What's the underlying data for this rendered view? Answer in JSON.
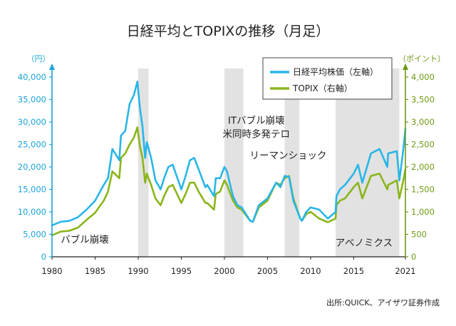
{
  "chart_data": {
    "type": "line",
    "title": "日経平均とTOPIXの推移（月足）",
    "source": "出所:QUICK、アイザワ証券作成",
    "colors": {
      "nikkei": "#29b6e8",
      "topix": "#8ab51a",
      "shade": "#e2e2e2",
      "left_axis": "#1aa3d9",
      "right_axis": "#6e9a14"
    },
    "xlim": [
      1980,
      2021
    ],
    "x_ticks": [
      "1980",
      "1985",
      "1990",
      "1995",
      "2000",
      "2005",
      "2010",
      "2015",
      "2021"
    ],
    "y_left": {
      "unit_label": "（円）",
      "ylim": [
        0,
        40000
      ],
      "ticks": [
        "0",
        "5,000",
        "10,000",
        "15,000",
        "20,000",
        "25,000",
        "30,000",
        "35,000",
        "40,000"
      ]
    },
    "y_right": {
      "unit_label": "（ポイント）",
      "ylim": [
        0,
        4000
      ],
      "ticks": [
        "0",
        "500",
        "1,000",
        "1,500",
        "2,000",
        "2,500",
        "3,000",
        "3,500",
        "4,000"
      ]
    },
    "legend": {
      "position": "top-right",
      "entries": [
        "日経平均株価（左軸）",
        "TOPIX（右軸）"
      ]
    },
    "shaded_periods": [
      {
        "start": 1990.0,
        "end": 1991.2
      },
      {
        "start": 2000.0,
        "end": 2002.2
      },
      {
        "start": 2007.0,
        "end": 2008.7
      },
      {
        "start": 2012.9,
        "end": 2020.3
      }
    ],
    "annotations": [
      {
        "text": "バブル崩壊",
        "x": 1983.8,
        "y": 3100
      },
      {
        "text": "ITバブル崩壊",
        "x": 2003.7,
        "y": 29600
      },
      {
        "text": "米同時多発テロ",
        "x": 2003.7,
        "y": 26600
      },
      {
        "text": "リーマンショック",
        "x": 2007.4,
        "y": 21800
      },
      {
        "text": "アベノミクス",
        "x": 2016.2,
        "y": 2400
      }
    ],
    "series": [
      {
        "name": "日経平均株価（左軸）",
        "axis": "left",
        "x": [
          1980,
          1981,
          1982,
          1983,
          1984,
          1985,
          1986,
          1986.5,
          1987,
          1987.8,
          1988,
          1988.5,
          1989,
          1989.5,
          1989.9,
          1990.2,
          1990.5,
          1990.8,
          1991,
          1991.5,
          1992,
          1992.6,
          1993,
          1993.5,
          1994,
          1995,
          1995.5,
          1996,
          1996.5,
          1997,
          1997.8,
          1998,
          1998.8,
          1999,
          1999.5,
          2000,
          2000.3,
          2000.8,
          2001,
          2001.5,
          2002,
          2003,
          2003.3,
          2004,
          2005,
          2006,
          2006.5,
          2007,
          2007.5,
          2008,
          2008.8,
          2009,
          2009.5,
          2010,
          2011,
          2012,
          2012.9,
          2013,
          2013.4,
          2014,
          2015,
          2015.5,
          2016,
          2017,
          2018,
          2018.9,
          2019,
          2020,
          2020.3,
          2020.7,
          2021
        ],
        "values": [
          7000,
          7800,
          8000,
          8800,
          10500,
          12500,
          16000,
          17500,
          24000,
          21500,
          27000,
          28000,
          34000,
          36000,
          39000,
          33000,
          29000,
          22000,
          25500,
          22000,
          17000,
          15000,
          17500,
          20000,
          20500,
          15000,
          18000,
          21500,
          22000,
          19500,
          15500,
          16000,
          13500,
          17500,
          17500,
          20000,
          19000,
          15000,
          13500,
          11500,
          11000,
          8000,
          7800,
          11500,
          13000,
          16500,
          15500,
          18000,
          17800,
          12500,
          8500,
          8000,
          10000,
          11000,
          10500,
          8500,
          10000,
          13500,
          15000,
          16000,
          18500,
          20500,
          16500,
          23000,
          24000,
          20000,
          23000,
          23500,
          17000,
          23000,
          28500
        ]
      },
      {
        "name": "TOPIX（右軸）",
        "axis": "right",
        "x": [
          1980,
          1981,
          1982,
          1983,
          1984,
          1985,
          1986,
          1986.5,
          1987,
          1987.8,
          1988,
          1988.5,
          1989,
          1989.5,
          1989.9,
          1990.2,
          1990.5,
          1990.8,
          1991,
          1991.5,
          1992,
          1992.6,
          1993,
          1993.5,
          1994,
          1995,
          1995.5,
          1996,
          1996.5,
          1997,
          1997.8,
          1998,
          1998.8,
          1999,
          1999.5,
          2000,
          2000.3,
          2000.8,
          2001,
          2001.5,
          2002,
          2003,
          2003.3,
          2004,
          2005,
          2006,
          2006.5,
          2007,
          2007.5,
          2008,
          2008.8,
          2009,
          2009.5,
          2010,
          2011,
          2012,
          2012.9,
          2013,
          2013.4,
          2014,
          2015,
          2015.5,
          2016,
          2017,
          2018,
          2018.9,
          2019,
          2020,
          2020.3,
          2020.7,
          2021
        ],
        "values": [
          480,
          560,
          580,
          650,
          820,
          980,
          1250,
          1450,
          1900,
          1750,
          2200,
          2300,
          2500,
          2650,
          2880,
          2450,
          2200,
          1650,
          1850,
          1600,
          1300,
          1150,
          1350,
          1550,
          1600,
          1200,
          1400,
          1650,
          1650,
          1450,
          1200,
          1200,
          1050,
          1400,
          1450,
          1700,
          1600,
          1350,
          1250,
          1100,
          1050,
          800,
          780,
          1100,
          1250,
          1650,
          1600,
          1750,
          1800,
          1300,
          850,
          800,
          950,
          1000,
          850,
          770,
          850,
          1150,
          1250,
          1300,
          1550,
          1650,
          1300,
          1800,
          1850,
          1500,
          1600,
          1700,
          1300,
          1650,
          1950
        ]
      }
    ]
  }
}
